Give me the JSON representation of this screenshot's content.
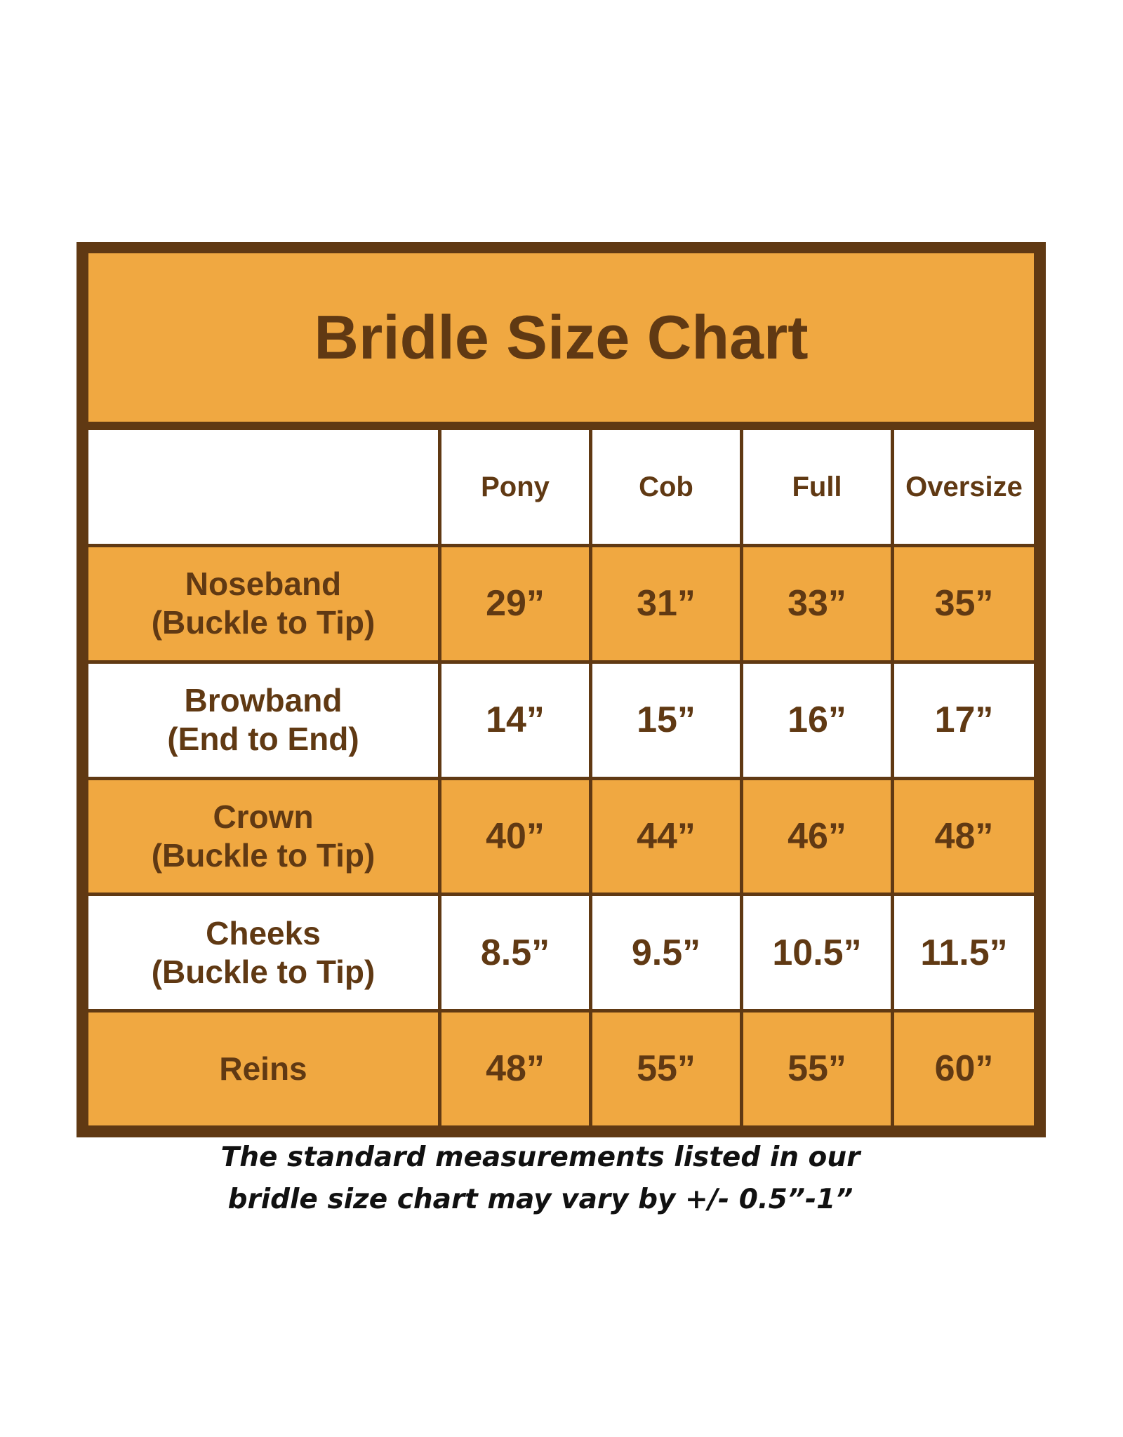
{
  "title": "Bridle Size Chart",
  "colors": {
    "orange": "#F0A841",
    "brown": "#603913"
  },
  "chart_data": {
    "type": "table",
    "title": "Bridle Size Chart",
    "columns": [
      "",
      "Pony",
      "Cob",
      "Full",
      "Oversize"
    ],
    "rows": [
      {
        "label": "Noseband\n(Buckle to Tip)",
        "values": [
          "29”",
          "31”",
          "33”",
          "35”"
        ]
      },
      {
        "label": "Browband\n(End to End)",
        "values": [
          "14”",
          "15”",
          "16”",
          "17”"
        ]
      },
      {
        "label": "Crown\n(Buckle to Tip)",
        "values": [
          "40”",
          "44”",
          "46”",
          "48”"
        ]
      },
      {
        "label": "Cheeks\n(Buckle to Tip)",
        "values": [
          "8.5”",
          "9.5”",
          "10.5”",
          "11.5”"
        ]
      },
      {
        "label": "Reins",
        "values": [
          "48”",
          "55”",
          "55”",
          "60”"
        ]
      }
    ]
  },
  "note": {
    "line1": "The standard measurements listed in our",
    "line2": "bridle size chart may vary by +/- 0.5”-1”"
  }
}
